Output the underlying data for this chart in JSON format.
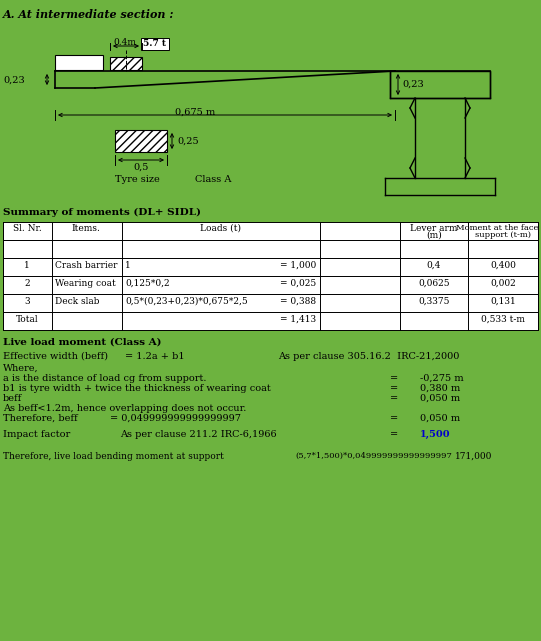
{
  "bg_color": "#6db33f",
  "title": "A. At intermediate section :",
  "summary_title": "Summary of moments (DL+ SIDL)",
  "live_load_title": "Live load moment (Class A)",
  "impact_val_color": "#0000cc",
  "white": "#ffffff",
  "black": "#000000"
}
